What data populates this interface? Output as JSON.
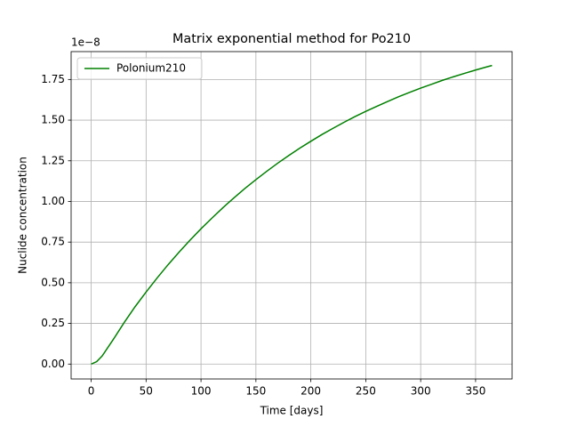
{
  "chart_data": {
    "type": "line",
    "title": "Matrix exponential method for Po210",
    "x_label": "Time [days]",
    "y_label": "Nuclide concentration",
    "y_offset_text": "1e−8",
    "x": [
      0,
      5,
      10,
      20,
      30,
      40,
      50,
      60,
      70,
      80,
      90,
      100,
      110,
      120,
      130,
      140,
      150,
      160,
      170,
      180,
      190,
      200,
      210,
      220,
      230,
      240,
      250,
      260,
      270,
      280,
      290,
      300,
      310,
      320,
      330,
      340,
      350,
      360,
      365
    ],
    "series": [
      {
        "name": "Polonium210",
        "color": "#008000",
        "values": [
          0,
          0.015,
          0.05,
          0.15,
          0.255,
          0.353,
          0.443,
          0.529,
          0.611,
          0.688,
          0.762,
          0.832,
          0.898,
          0.962,
          1.022,
          1.08,
          1.134,
          1.186,
          1.236,
          1.283,
          1.328,
          1.37,
          1.411,
          1.449,
          1.486,
          1.521,
          1.554,
          1.585,
          1.615,
          1.644,
          1.671,
          1.697,
          1.721,
          1.745,
          1.767,
          1.788,
          1.808,
          1.827,
          1.836
        ]
      }
    ],
    "xlim": [
      -18.25,
      383.25
    ],
    "xticks": [
      0,
      50,
      100,
      150,
      200,
      250,
      300,
      350
    ],
    "ylim": [
      -0.0915,
      1.9215
    ],
    "yticks": [
      {
        "value": 0,
        "label": "0.00"
      },
      0.25,
      {
        "value": 0.5,
        "label": "0.50"
      },
      0.75,
      {
        "value": 1,
        "label": "1.00"
      },
      1.25,
      {
        "value": 1.5,
        "label": "1.50"
      },
      1.75
    ],
    "grid": true,
    "legend": "upper left"
  }
}
